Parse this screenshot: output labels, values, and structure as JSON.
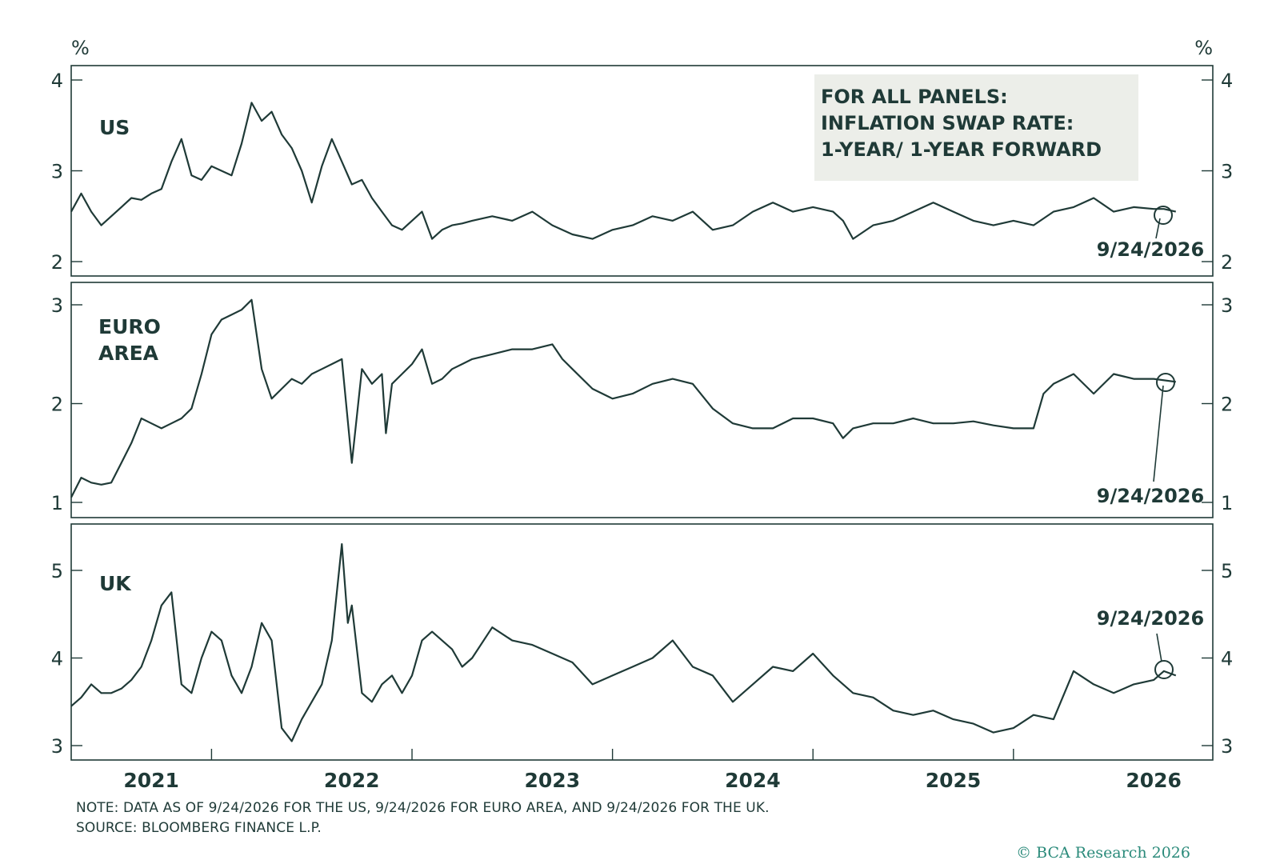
{
  "legend_box": {
    "lines": [
      "FOR ALL PANELS:",
      "INFLATION SWAP RATE:",
      "1-YEAR/ 1-YEAR FORWARD"
    ]
  },
  "footer": {
    "note": "NOTE: DATA AS OF 9/24/2026 FOR THE US, 9/24/2026 FOR EURO AREA, AND 9/24/2026 FOR THE UK.",
    "source": "SOURCE: BLOOMBERG FINANCE L.P.",
    "copyright": "© BCA Research 2026"
  },
  "colors": {
    "line": "#1f3a37",
    "axis": "#1f3a37",
    "legend_bg": "#eceee9",
    "copyright": "#2a8a7a"
  },
  "chart_data": [
    {
      "type": "line",
      "panel": "US",
      "label_lines": [
        "US"
      ],
      "unit_label": "%",
      "ylim": [
        1.85,
        4.1
      ],
      "yticks": [
        2,
        3,
        4
      ],
      "xlim": [
        2020.8,
        2027.0
      ],
      "end_annotation": "9/24/2026",
      "series": [
        {
          "x": [
            2020.8,
            2020.85,
            2020.9,
            2020.95,
            2021.0,
            2021.05,
            2021.1,
            2021.15,
            2021.2,
            2021.25,
            2021.3,
            2021.35,
            2021.4,
            2021.45,
            2021.5,
            2021.55,
            2021.6,
            2021.65,
            2021.7,
            2021.75,
            2021.8,
            2021.85,
            2021.9,
            2021.95,
            2022.0,
            2022.05,
            2022.1,
            2022.15,
            2022.2,
            2022.25,
            2022.3,
            2022.35,
            2022.4,
            2022.45,
            2022.5,
            2022.55,
            2022.6,
            2022.65,
            2022.7,
            2022.75,
            2022.8,
            2022.9,
            2023.0,
            2023.1,
            2023.2,
            2023.3,
            2023.4,
            2023.5,
            2023.6,
            2023.7,
            2023.8,
            2023.9,
            2024.0,
            2024.1,
            2024.2,
            2024.3,
            2024.4,
            2024.5,
            2024.6,
            2024.65,
            2024.7,
            2024.8,
            2024.9,
            2025.0,
            2025.1,
            2025.2,
            2025.3,
            2025.4,
            2025.5,
            2025.6,
            2025.7,
            2025.8,
            2025.9,
            2026.0,
            2026.1,
            2026.2,
            2026.25,
            2026.31
          ],
          "values": [
            2.55,
            2.75,
            2.55,
            2.4,
            2.5,
            2.6,
            2.7,
            2.68,
            2.75,
            2.8,
            3.1,
            3.35,
            2.95,
            2.9,
            3.05,
            3.0,
            2.95,
            3.3,
            3.75,
            3.55,
            3.65,
            3.4,
            3.25,
            3.0,
            2.65,
            3.05,
            3.35,
            3.1,
            2.85,
            2.9,
            2.7,
            2.55,
            2.4,
            2.35,
            2.45,
            2.55,
            2.25,
            2.35,
            2.4,
            2.42,
            2.45,
            2.5,
            2.45,
            2.55,
            2.4,
            2.3,
            2.25,
            2.35,
            2.4,
            2.5,
            2.45,
            2.55,
            2.35,
            2.4,
            2.55,
            2.65,
            2.55,
            2.6,
            2.55,
            2.45,
            2.25,
            2.4,
            2.45,
            2.55,
            2.65,
            2.55,
            2.45,
            2.4,
            2.45,
            2.4,
            2.55,
            2.6,
            2.7,
            2.55,
            2.6,
            2.58,
            2.58,
            2.55
          ]
        }
      ]
    },
    {
      "type": "line",
      "panel": "EURO AREA",
      "label_lines": [
        "EURO",
        "AREA"
      ],
      "ylim": [
        0.85,
        3.25
      ],
      "yticks": [
        1,
        2,
        3
      ],
      "xlim": [
        2020.8,
        2027.0
      ],
      "end_annotation": "9/24/2026",
      "series": [
        {
          "x": [
            2020.8,
            2020.85,
            2020.9,
            2020.95,
            2021.0,
            2021.05,
            2021.1,
            2021.15,
            2021.2,
            2021.25,
            2021.3,
            2021.35,
            2021.4,
            2021.45,
            2021.5,
            2021.55,
            2021.6,
            2021.65,
            2021.7,
            2021.75,
            2021.8,
            2021.85,
            2021.9,
            2021.95,
            2022.0,
            2022.05,
            2022.1,
            2022.15,
            2022.2,
            2022.25,
            2022.3,
            2022.35,
            2022.37,
            2022.4,
            2022.45,
            2022.5,
            2022.55,
            2022.6,
            2022.65,
            2022.7,
            2022.75,
            2022.8,
            2022.9,
            2023.0,
            2023.1,
            2023.2,
            2023.25,
            2023.3,
            2023.4,
            2023.5,
            2023.6,
            2023.7,
            2023.8,
            2023.9,
            2024.0,
            2024.1,
            2024.2,
            2024.3,
            2024.4,
            2024.5,
            2024.6,
            2024.65,
            2024.7,
            2024.8,
            2024.9,
            2025.0,
            2025.1,
            2025.2,
            2025.3,
            2025.4,
            2025.5,
            2025.6,
            2025.65,
            2025.7,
            2025.8,
            2025.9,
            2026.0,
            2026.1,
            2026.2,
            2026.31
          ],
          "values": [
            1.05,
            1.25,
            1.2,
            1.18,
            1.2,
            1.4,
            1.6,
            1.85,
            1.8,
            1.75,
            1.8,
            1.85,
            1.95,
            2.3,
            2.7,
            2.85,
            2.9,
            2.95,
            3.05,
            2.35,
            2.05,
            2.15,
            2.25,
            2.2,
            2.3,
            2.35,
            2.4,
            2.45,
            1.4,
            2.35,
            2.2,
            2.3,
            1.7,
            2.2,
            2.3,
            2.4,
            2.55,
            2.2,
            2.25,
            2.35,
            2.4,
            2.45,
            2.5,
            2.55,
            2.55,
            2.6,
            2.45,
            2.35,
            2.15,
            2.05,
            2.1,
            2.2,
            2.25,
            2.2,
            1.95,
            1.8,
            1.75,
            1.75,
            1.85,
            1.85,
            1.8,
            1.65,
            1.75,
            1.8,
            1.8,
            1.85,
            1.8,
            1.8,
            1.82,
            1.78,
            1.75,
            1.75,
            2.1,
            2.2,
            2.3,
            2.1,
            2.3,
            2.25,
            2.25,
            2.22
          ]
        }
      ]
    },
    {
      "type": "line",
      "panel": "UK",
      "label_lines": [
        "UK"
      ],
      "ylim": [
        2.85,
        5.5
      ],
      "yticks": [
        3,
        4,
        5
      ],
      "xlim": [
        2020.8,
        2027.0
      ],
      "xticks": [
        2021,
        2022,
        2023,
        2024,
        2025,
        2026
      ],
      "end_annotation": "9/24/2026",
      "series": [
        {
          "x": [
            2020.8,
            2020.85,
            2020.9,
            2020.95,
            2021.0,
            2021.05,
            2021.1,
            2021.15,
            2021.2,
            2021.25,
            2021.3,
            2021.35,
            2021.4,
            2021.45,
            2021.5,
            2021.55,
            2021.6,
            2021.65,
            2021.7,
            2021.75,
            2021.8,
            2021.85,
            2021.9,
            2021.95,
            2022.0,
            2022.05,
            2022.1,
            2022.15,
            2022.18,
            2022.2,
            2022.25,
            2022.3,
            2022.35,
            2022.4,
            2022.45,
            2022.5,
            2022.55,
            2022.6,
            2022.65,
            2022.7,
            2022.75,
            2022.8,
            2022.9,
            2023.0,
            2023.1,
            2023.2,
            2023.3,
            2023.4,
            2023.5,
            2023.6,
            2023.7,
            2023.8,
            2023.9,
            2024.0,
            2024.1,
            2024.2,
            2024.3,
            2024.4,
            2024.5,
            2024.6,
            2024.7,
            2024.8,
            2024.9,
            2025.0,
            2025.1,
            2025.2,
            2025.3,
            2025.4,
            2025.5,
            2025.6,
            2025.7,
            2025.8,
            2025.9,
            2026.0,
            2026.1,
            2026.2,
            2026.25,
            2026.31
          ],
          "values": [
            3.45,
            3.55,
            3.7,
            3.6,
            3.6,
            3.65,
            3.75,
            3.9,
            4.2,
            4.6,
            4.75,
            3.7,
            3.6,
            4.0,
            4.3,
            4.2,
            3.8,
            3.6,
            3.9,
            4.4,
            4.2,
            3.2,
            3.05,
            3.3,
            3.5,
            3.7,
            4.2,
            5.3,
            4.4,
            4.6,
            3.6,
            3.5,
            3.7,
            3.8,
            3.6,
            3.8,
            4.2,
            4.3,
            4.2,
            4.1,
            3.9,
            4.0,
            4.35,
            4.2,
            4.15,
            4.05,
            3.95,
            3.7,
            3.8,
            3.9,
            4.0,
            4.2,
            3.9,
            3.8,
            3.5,
            3.7,
            3.9,
            3.85,
            4.05,
            3.8,
            3.6,
            3.55,
            3.4,
            3.35,
            3.4,
            3.3,
            3.25,
            3.15,
            3.2,
            3.35,
            3.3,
            3.85,
            3.7,
            3.6,
            3.7,
            3.75,
            3.85,
            3.8
          ]
        }
      ]
    }
  ]
}
